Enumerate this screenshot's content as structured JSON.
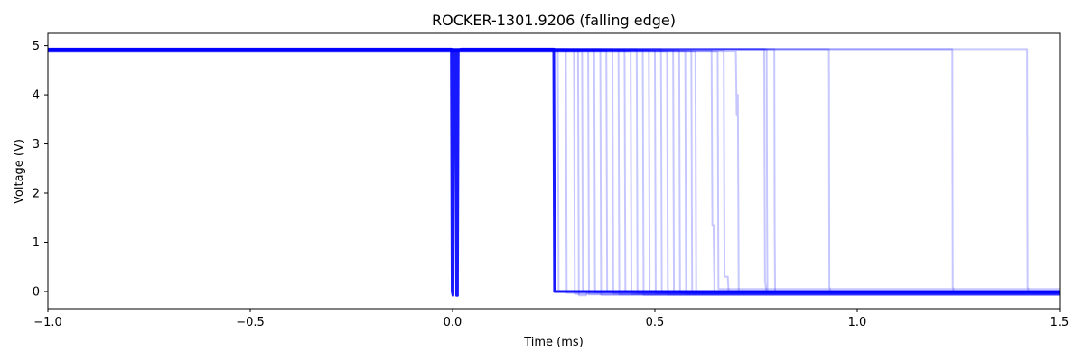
{
  "chart_data": {
    "type": "line",
    "title": "ROCKER-1301.9206 (falling edge)",
    "xlabel": "Time (ms)",
    "ylabel": "Voltage (V)",
    "xlim": [
      -1.0,
      1.5
    ],
    "ylim": [
      -0.35,
      5.25
    ],
    "xticks": [
      -1.0,
      -0.5,
      0.0,
      0.5,
      1.0,
      1.5
    ],
    "xtick_labels": [
      "−1.0",
      "−0.5",
      "0.0",
      "0.5",
      "1.0",
      "1.5"
    ],
    "yticks": [
      0,
      1,
      2,
      3,
      4,
      5
    ],
    "ytick_labels": [
      "0",
      "1",
      "2",
      "3",
      "4",
      "5"
    ],
    "grid": false,
    "line_color": "#0000ff",
    "series": [
      {
        "x": [
          -1.0,
          -0.003,
          -0.001,
          0.001,
          0.003,
          0.008,
          0.01,
          0.012,
          0.014,
          0.02,
          0.25,
          0.252,
          1.5
        ],
        "y": [
          4.93,
          4.93,
          0.0,
          -0.08,
          4.9,
          4.9,
          -0.08,
          -0.08,
          4.9,
          4.93,
          4.93,
          0.0,
          0.0
        ]
      },
      {
        "x": [
          -1.0,
          0.26,
          0.262,
          0.27,
          0.272,
          1.5
        ],
        "y": [
          4.9,
          4.9,
          0.0,
          0.0,
          0.0,
          -0.02
        ]
      },
      {
        "x": [
          -1.0,
          0.28,
          0.282,
          1.5
        ],
        "y": [
          4.93,
          4.93,
          -0.03,
          -0.03
        ]
      },
      {
        "x": [
          -1.0,
          0.3,
          0.302,
          1.5
        ],
        "y": [
          4.9,
          4.9,
          -0.05,
          -0.05
        ]
      },
      {
        "x": [
          -1.0,
          0.31,
          0.312,
          0.33,
          0.332,
          1.5
        ],
        "y": [
          4.93,
          4.93,
          -0.08,
          -0.08,
          -0.02,
          -0.02
        ]
      },
      {
        "x": [
          -1.0,
          0.32,
          0.322,
          1.5
        ],
        "y": [
          4.88,
          4.88,
          0.0,
          0.0
        ]
      },
      {
        "x": [
          -1.0,
          0.335,
          0.337,
          1.5
        ],
        "y": [
          4.92,
          4.92,
          -0.06,
          -0.06
        ]
      },
      {
        "x": [
          -1.0,
          0.35,
          0.352,
          1.5
        ],
        "y": [
          4.9,
          4.9,
          -0.02,
          -0.02
        ]
      },
      {
        "x": [
          -1.0,
          0.365,
          0.367,
          1.5
        ],
        "y": [
          4.93,
          4.93,
          -0.07,
          -0.07
        ]
      },
      {
        "x": [
          -1.0,
          0.38,
          0.382,
          1.5
        ],
        "y": [
          4.89,
          4.89,
          0.0,
          0.0
        ]
      },
      {
        "x": [
          -1.0,
          0.395,
          0.397,
          1.5
        ],
        "y": [
          4.93,
          4.93,
          -0.04,
          -0.04
        ]
      },
      {
        "x": [
          -1.0,
          0.41,
          0.412,
          1.5
        ],
        "y": [
          4.9,
          4.9,
          -0.06,
          -0.06
        ]
      },
      {
        "x": [
          -1.0,
          0.425,
          0.427,
          1.5
        ],
        "y": [
          4.92,
          4.92,
          -0.01,
          -0.01
        ]
      },
      {
        "x": [
          -1.0,
          0.44,
          0.442,
          1.5
        ],
        "y": [
          4.88,
          4.88,
          -0.05,
          -0.05
        ]
      },
      {
        "x": [
          -1.0,
          0.455,
          0.457,
          1.5
        ],
        "y": [
          4.93,
          4.93,
          -0.03,
          -0.03
        ]
      },
      {
        "x": [
          -1.0,
          0.47,
          0.472,
          1.5
        ],
        "y": [
          4.9,
          4.9,
          -0.07,
          -0.07
        ]
      },
      {
        "x": [
          -1.0,
          0.485,
          0.487,
          1.5
        ],
        "y": [
          4.92,
          4.92,
          0.0,
          0.0
        ]
      },
      {
        "x": [
          -1.0,
          0.5,
          0.502,
          1.5
        ],
        "y": [
          4.9,
          4.9,
          -0.04,
          -0.04
        ]
      },
      {
        "x": [
          -1.0,
          0.515,
          0.517,
          1.5
        ],
        "y": [
          4.93,
          4.93,
          -0.02,
          -0.02
        ]
      },
      {
        "x": [
          -1.0,
          0.53,
          0.532,
          1.5
        ],
        "y": [
          4.88,
          4.88,
          -0.06,
          -0.06
        ]
      },
      {
        "x": [
          -1.0,
          0.545,
          0.547,
          1.5
        ],
        "y": [
          4.9,
          4.9,
          0.0,
          0.0
        ]
      },
      {
        "x": [
          -1.0,
          0.56,
          0.562,
          1.5
        ],
        "y": [
          4.92,
          4.92,
          -0.03,
          -0.03
        ]
      },
      {
        "x": [
          -1.0,
          0.575,
          0.577,
          1.5
        ],
        "y": [
          4.89,
          4.89,
          -0.05,
          -0.05
        ]
      },
      {
        "x": [
          -1.0,
          0.59,
          0.592,
          1.5
        ],
        "y": [
          4.9,
          4.9,
          -0.01,
          -0.01
        ]
      },
      {
        "x": [
          -1.0,
          0.6,
          0.602,
          1.5
        ],
        "y": [
          4.88,
          4.88,
          0.0,
          0.0
        ]
      },
      {
        "x": [
          -1.0,
          0.64,
          0.642,
          0.645,
          0.647,
          1.5
        ],
        "y": [
          4.9,
          4.9,
          1.35,
          1.35,
          0.0,
          0.0
        ]
      },
      {
        "x": [
          -1.0,
          0.655,
          0.657,
          1.5
        ],
        "y": [
          4.88,
          4.88,
          0.05,
          0.05
        ]
      },
      {
        "x": [
          -1.0,
          0.67,
          0.672,
          0.68,
          0.682,
          1.5
        ],
        "y": [
          4.9,
          4.9,
          0.3,
          0.3,
          0.0,
          0.0
        ]
      },
      {
        "x": [
          -1.0,
          0.7,
          0.702,
          0.705,
          0.707,
          1.5
        ],
        "y": [
          4.88,
          4.88,
          3.6,
          4.0,
          0.0,
          0.0
        ]
      },
      {
        "x": [
          -1.0,
          0.776,
          0.777,
          0.778,
          0.779,
          1.5
        ],
        "y": [
          4.93,
          4.93,
          1.97,
          0.0,
          0.0,
          0.0
        ]
      },
      {
        "x": [
          -1.0,
          0.795,
          0.796,
          0.797,
          0.798,
          1.5
        ],
        "y": [
          4.93,
          4.93,
          1.1,
          0.0,
          0.0,
          0.0
        ]
      },
      {
        "x": [
          -1.0,
          0.77,
          0.772,
          0.773,
          0.775,
          1.5
        ],
        "y": [
          4.93,
          4.93,
          0.2,
          0.15,
          0.0,
          0.0
        ]
      },
      {
        "x": [
          -1.0,
          0.93,
          0.931,
          0.932,
          0.933,
          1.5
        ],
        "y": [
          4.93,
          4.93,
          0.08,
          0.08,
          0.0,
          0.0
        ]
      },
      {
        "x": [
          -1.0,
          1.235,
          1.236,
          1.237,
          1.238,
          1.5
        ],
        "y": [
          4.93,
          4.93,
          0.08,
          0.08,
          0.0,
          0.0
        ]
      },
      {
        "x": [
          -1.0,
          1.42,
          1.421,
          1.422,
          1.423,
          1.5
        ],
        "y": [
          4.93,
          4.93,
          0.08,
          0.08,
          0.0,
          0.0
        ]
      }
    ]
  }
}
